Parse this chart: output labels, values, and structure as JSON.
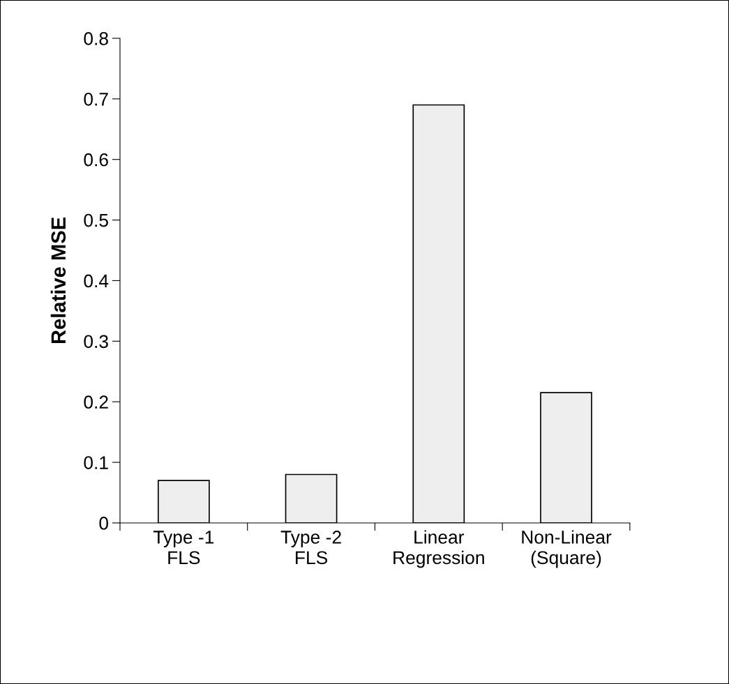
{
  "chart_data": {
    "type": "bar",
    "ylabel": "Relative MSE",
    "categories": [
      "Type -1\nFLS",
      "Type -2\nFLS",
      "Linear\nRegression",
      "Non-Linear\n(Square)"
    ],
    "values": [
      0.07,
      0.08,
      0.69,
      0.215
    ],
    "color": "#eeeeee",
    "ylim": [
      0,
      0.8
    ],
    "yticks": [
      0,
      0.1,
      0.2,
      0.3,
      0.4,
      0.5,
      0.6,
      0.7,
      0.8
    ],
    "grid": false,
    "legend": false
  }
}
